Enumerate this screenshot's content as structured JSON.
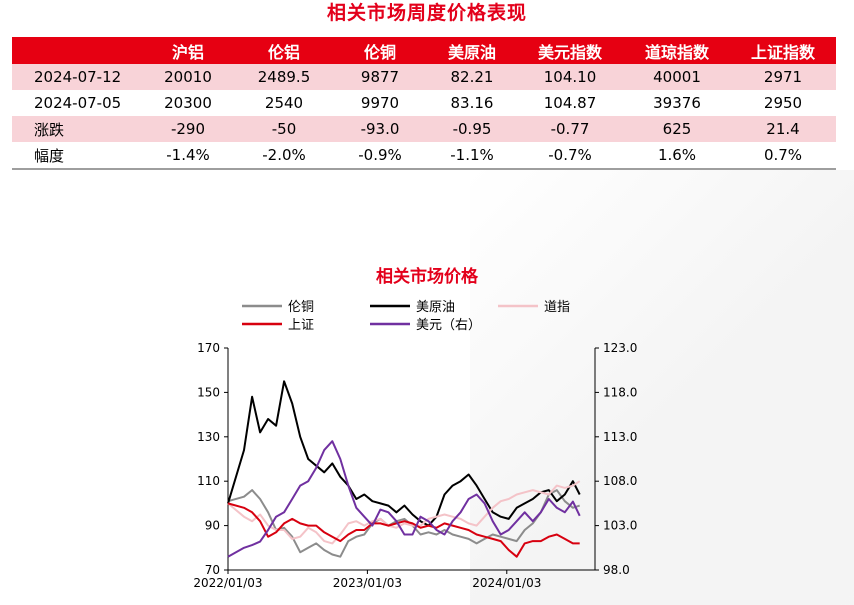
{
  "page_title": "相关市场周度价格表现",
  "table": {
    "headers": [
      "",
      "沪铝",
      "伦铝",
      "伦铜",
      "美原油",
      "美元指数",
      "道琼指数",
      "上证指数"
    ],
    "rows": [
      {
        "label": "2024-07-12",
        "values": [
          "20010",
          "2489.5",
          "9877",
          "82.21",
          "104.10",
          "40001",
          "2971"
        ]
      },
      {
        "label": "2024-07-05",
        "values": [
          "20300",
          "2540",
          "9970",
          "83.16",
          "104.87",
          "39376",
          "2950"
        ]
      },
      {
        "label": "涨跌",
        "values": [
          "-290",
          "-50",
          "-93.0",
          "-0.95",
          "-0.77",
          "625",
          "21.4"
        ]
      },
      {
        "label": "幅度",
        "values": [
          "-1.4%",
          "-2.0%",
          "-0.9%",
          "-1.1%",
          "-0.7%",
          "1.6%",
          "0.7%"
        ]
      }
    ]
  },
  "chart_data": {
    "type": "line",
    "title": "相关市场价格",
    "x": [
      "2022/01/03",
      "2022/02/14",
      "2022/03/07",
      "2022/03/28",
      "2022/04/18",
      "2022/05/09",
      "2022/05/30",
      "2022/06/20",
      "2022/07/11",
      "2022/08/01",
      "2022/08/22",
      "2022/09/12",
      "2022/10/03",
      "2022/10/24",
      "2022/11/14",
      "2022/12/05",
      "2022/12/26",
      "2023/01/16",
      "2023/02/06",
      "2023/02/27",
      "2023/03/20",
      "2023/04/10",
      "2023/05/01",
      "2023/05/22",
      "2023/06/12",
      "2023/07/03",
      "2023/07/24",
      "2023/08/14",
      "2023/09/04",
      "2023/09/25",
      "2023/10/16",
      "2023/11/06",
      "2023/11/27",
      "2023/12/18",
      "2024/01/08",
      "2024/01/29",
      "2024/02/19",
      "2024/03/11",
      "2024/04/01",
      "2024/04/22",
      "2024/05/13",
      "2024/06/03",
      "2024/06/24",
      "2024/07/12"
    ],
    "x_ticks": [
      "2022/01/03",
      "2023/01/03",
      "2024/01/03"
    ],
    "y_left": {
      "min": 70,
      "max": 170,
      "ticks": [
        "70",
        "90",
        "110",
        "130",
        "150",
        "170"
      ]
    },
    "y_right": {
      "min": 98.0,
      "max": 123.0,
      "ticks": [
        "98.0",
        "103.0",
        "108.0",
        "113.0",
        "118.0",
        "123.0"
      ]
    },
    "legend": {
      "placement": "top",
      "columns": 3
    },
    "series": [
      {
        "name": "伦铜",
        "axis": "left",
        "color": "#8c8c8c",
        "values": [
          101,
          103,
          106,
          102,
          96,
          88,
          89,
          85,
          78,
          80,
          82,
          79,
          77,
          76,
          83,
          85,
          86,
          91,
          93,
          90,
          92,
          93,
          90,
          86,
          87,
          86,
          88,
          86,
          85,
          84,
          82,
          84,
          86,
          85,
          84,
          83,
          88,
          91,
          96,
          104,
          106,
          101,
          98,
          99
        ]
      },
      {
        "name": "美原油",
        "axis": "left",
        "color": "#000000",
        "values": [
          100,
          124,
          148,
          132,
          138,
          135,
          155,
          145,
          130,
          120,
          117,
          114,
          118,
          112,
          108,
          102,
          104,
          101,
          100,
          99,
          96,
          99,
          95,
          92,
          90,
          94,
          104,
          108,
          110,
          113,
          108,
          102,
          96,
          94,
          93,
          98,
          100,
          102,
          105,
          106,
          101,
          104,
          110,
          104
        ]
      },
      {
        "name": "道指",
        "axis": "left",
        "color": "#f4c3c8",
        "values": [
          100,
          94,
          92,
          95,
          90,
          88,
          88,
          84,
          85,
          89,
          87,
          83,
          82,
          86,
          91,
          92,
          90,
          92,
          93,
          90,
          89,
          91,
          90,
          90,
          93,
          94,
          95,
          94,
          93,
          91,
          90,
          94,
          98,
          101,
          102,
          104,
          105,
          106,
          105,
          104,
          108,
          107,
          108,
          110
        ]
      },
      {
        "name": "上证",
        "axis": "left",
        "color": "#d7000f",
        "values": [
          100,
          98,
          96,
          92,
          85,
          87,
          91,
          93,
          91,
          90,
          90,
          87,
          85,
          83,
          86,
          88,
          88,
          91,
          91,
          90,
          91,
          92,
          91,
          89,
          90,
          89,
          91,
          90,
          89,
          88,
          86,
          85,
          84,
          83,
          79,
          76,
          82,
          83,
          83,
          85,
          86,
          84,
          82,
          82
        ]
      },
      {
        "name": "美元（右）",
        "axis": "right",
        "color": "#7030a0",
        "values": [
          99.5,
          100.5,
          100.8,
          101.2,
          102.5,
          104.0,
          104.5,
          106.0,
          107.5,
          108.0,
          109.5,
          111.5,
          112.5,
          110.5,
          107.5,
          105.0,
          104.0,
          103.0,
          104.8,
          104.5,
          103.5,
          102.0,
          102.0,
          104.0,
          103.5,
          102.5,
          102.0,
          103.5,
          104.5,
          106.0,
          106.5,
          105.5,
          103.5,
          102.0,
          102.5,
          103.5,
          104.5,
          103.5,
          104.5,
          106.0,
          105.0,
          104.5,
          105.7,
          104.1
        ]
      }
    ]
  }
}
